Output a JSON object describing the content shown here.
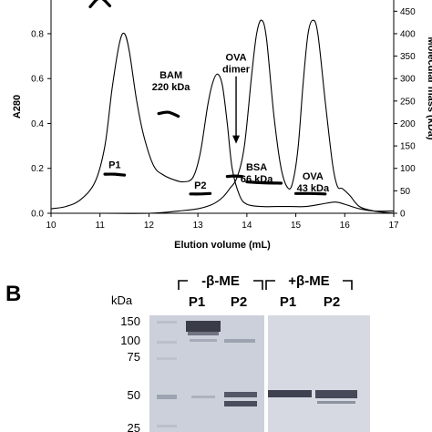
{
  "chart_data": [
    {
      "type": "line",
      "xlabel": "Elution volume (mL)",
      "ylabel_left": "A280",
      "ylabel_right": "Molecular mass (kDa)",
      "xlim": [
        10,
        17
      ],
      "ylim_left": [
        0,
        0.95
      ],
      "ylim_right": [
        0,
        475
      ],
      "x_ticks": [
        10,
        11,
        12,
        13,
        14,
        15,
        16,
        17
      ],
      "y_ticks_left": [
        0,
        0.2,
        0.4,
        0.6,
        0.8
      ],
      "y_ticks_right": [
        0,
        50,
        100,
        150,
        200,
        250,
        300,
        350,
        400,
        450
      ],
      "x_tick_labels": [
        "10",
        "11",
        "12",
        "13",
        "14",
        "15",
        "16",
        "17"
      ],
      "y_tick_labels_left": [
        "0.0",
        "0.2",
        "0.4",
        "0.6",
        "0.8"
      ],
      "y_tick_labels_right": [
        "0",
        "50",
        "100",
        "150",
        "200",
        "250",
        "300",
        "350",
        "400",
        "450"
      ],
      "series": [
        {
          "x": [
            10.0,
            10.3,
            10.6,
            10.9,
            11.1,
            11.25,
            11.4,
            11.5,
            11.6,
            11.75,
            11.9,
            12.1,
            12.3,
            12.5,
            12.7,
            12.9,
            13.05,
            13.2,
            13.3,
            13.4,
            13.5,
            13.6,
            13.7,
            13.85,
            14.0,
            14.3,
            14.6,
            14.9,
            15.2,
            15.5,
            15.8,
            16.0,
            16.3,
            16.6,
            17.0
          ],
          "y": [
            0.02,
            0.03,
            0.06,
            0.14,
            0.3,
            0.56,
            0.76,
            0.8,
            0.72,
            0.5,
            0.34,
            0.21,
            0.17,
            0.15,
            0.14,
            0.16,
            0.27,
            0.48,
            0.58,
            0.62,
            0.57,
            0.4,
            0.2,
            0.08,
            0.04,
            0.03,
            0.03,
            0.03,
            0.03,
            0.04,
            0.05,
            0.04,
            0.02,
            0.01,
            0.01
          ]
        },
        {
          "x": [
            10.0,
            11.0,
            12.0,
            12.6,
            13.0,
            13.3,
            13.5,
            13.65,
            13.8,
            13.95,
            14.1,
            14.2,
            14.3,
            14.4,
            14.55,
            14.7,
            14.85,
            14.95,
            15.05,
            15.15,
            15.25,
            15.35,
            15.45,
            15.6,
            15.75,
            15.85,
            15.95,
            16.1,
            16.3,
            16.6,
            17.0
          ],
          "y": [
            0.0,
            0.0,
            0.0,
            0.01,
            0.02,
            0.04,
            0.07,
            0.11,
            0.16,
            0.3,
            0.62,
            0.8,
            0.86,
            0.78,
            0.44,
            0.2,
            0.11,
            0.15,
            0.3,
            0.58,
            0.8,
            0.86,
            0.8,
            0.5,
            0.22,
            0.12,
            0.11,
            0.08,
            0.03,
            0.01,
            0.0
          ]
        }
      ],
      "mass_segments": [
        {
          "x": [
            10.8,
            11.0,
            11.2
          ],
          "y": [
            460,
            480,
            462
          ]
        },
        {
          "x": [
            11.1,
            11.3,
            11.5
          ],
          "y": [
            87,
            87,
            85
          ]
        },
        {
          "x": [
            12.2,
            12.4,
            12.6
          ],
          "y": [
            222,
            225,
            216
          ]
        },
        {
          "x": [
            12.85,
            13.05,
            13.25
          ],
          "y": [
            43,
            43,
            44
          ]
        },
        {
          "x": [
            13.6,
            13.75,
            13.9
          ],
          "y": [
            82,
            83,
            82
          ]
        },
        {
          "x": [
            14.0,
            14.3,
            14.7
          ],
          "y": [
            70,
            68,
            67
          ]
        },
        {
          "x": [
            15.0,
            15.3,
            15.6
          ],
          "y": [
            44,
            44,
            43
          ]
        }
      ],
      "annotations": [
        {
          "lines": [
            "P1"
          ],
          "x": 11.3,
          "y": 0.2
        },
        {
          "lines": [
            "BAM",
            "220 kDa"
          ],
          "x": 12.45,
          "y": 0.6
        },
        {
          "lines": [
            "OVA",
            "dimer"
          ],
          "x": 13.78,
          "y": 0.68
        },
        {
          "lines": [
            "P2"
          ],
          "x": 13.05,
          "y": 0.11
        },
        {
          "lines": [
            "BSA",
            "66 kDa"
          ],
          "x": 14.2,
          "y": 0.19
        },
        {
          "lines": [
            "OVA",
            "43 kDa"
          ],
          "x": 15.35,
          "y": 0.15
        }
      ],
      "arrow": {
        "x": 13.78,
        "y_from": 0.61,
        "y_to": 0.31
      }
    }
  ],
  "gel": {
    "panel_letter": "B",
    "kda_label": "kDa",
    "markers": [
      "150",
      "100",
      "75",
      "50",
      "25"
    ],
    "marker_values": [
      150,
      100,
      75,
      50,
      25
    ],
    "groups": [
      {
        "label": "-β-ME",
        "lanes": [
          "P1",
          "P2"
        ]
      },
      {
        "label": "+β-ME",
        "lanes": [
          "P1",
          "P2"
        ]
      }
    ]
  }
}
